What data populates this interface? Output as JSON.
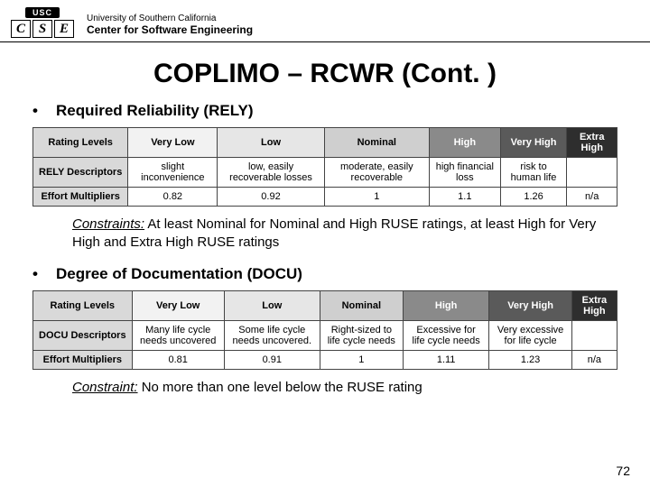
{
  "header": {
    "usc": "USC",
    "c": "C",
    "s": "S",
    "e": "E",
    "university": "University of Southern California",
    "center": "Center for Software Engineering"
  },
  "title": "COPLIMO – RCWR (Cont. )",
  "section1": {
    "heading": "Required Reliability (RELY)",
    "rows": {
      "r0": "Rating Levels",
      "r1": "RELY Descriptors",
      "r2": "Effort Multipliers"
    },
    "cols": {
      "c0": "Very Low",
      "c1": "Low",
      "c2": "Nominal",
      "c3": "High",
      "c4": "Very High",
      "c5": "Extra High"
    },
    "desc": {
      "c0": "slight inconvenience",
      "c1": "low, easily recoverable losses",
      "c2": "moderate, easily recoverable",
      "c3": "high financial loss",
      "c4": "risk to human life",
      "c5": ""
    },
    "mult": {
      "c0": "0.82",
      "c1": "0.92",
      "c2": "1",
      "c3": "1.1",
      "c4": "1.26",
      "c5": "n/a"
    },
    "constraint_label": "Constraints:",
    "constraint_text": " At least Nominal for Nominal and High RUSE ratings, at least High for Very High and Extra High RUSE ratings"
  },
  "section2": {
    "heading": "Degree of Documentation (DOCU)",
    "rows": {
      "r0": "Rating Levels",
      "r1": "DOCU Descriptors",
      "r2": "Effort Multipliers"
    },
    "cols": {
      "c0": "Very Low",
      "c1": "Low",
      "c2": "Nominal",
      "c3": "High",
      "c4": "Very High",
      "c5": "Extra High"
    },
    "desc": {
      "c0": "Many life cycle needs uncovered",
      "c1": "Some life cycle needs uncovered.",
      "c2": "Right-sized to life cycle needs",
      "c3": "Excessive for life cycle needs",
      "c4": "Very excessive for life cycle",
      "c5": ""
    },
    "mult": {
      "c0": "0.81",
      "c1": "0.91",
      "c2": "1",
      "c3": "1.11",
      "c4": "1.23",
      "c5": "n/a"
    },
    "constraint_label": "Constraint:",
    "constraint_text": " No more than one level below the RUSE rating"
  },
  "page": "72",
  "bullet": "•"
}
